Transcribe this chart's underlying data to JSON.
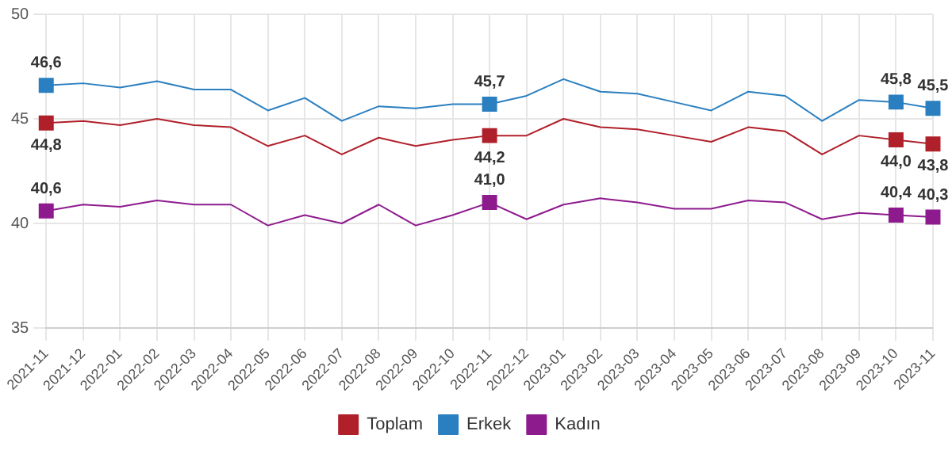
{
  "chart_data": {
    "type": "line",
    "categories": [
      "2021-11",
      "2021-12",
      "2022-01",
      "2022-02",
      "2022-03",
      "2022-04",
      "2022-05",
      "2022-06",
      "2022-07",
      "2022-08",
      "2022-09",
      "2022-10",
      "2022-11",
      "2022-12",
      "2023-01",
      "2023-02",
      "2023-03",
      "2023-04",
      "2023-05",
      "2023-06",
      "2023-07",
      "2023-08",
      "2023-09",
      "2023-10",
      "2023-11"
    ],
    "series": [
      {
        "name": "Toplam",
        "color": "#b0202a",
        "values": [
          44.8,
          44.9,
          44.7,
          45.0,
          44.7,
          44.6,
          43.7,
          44.2,
          43.3,
          44.1,
          43.7,
          44.0,
          44.2,
          44.2,
          45.0,
          44.6,
          44.5,
          44.2,
          43.9,
          44.6,
          44.4,
          43.3,
          44.2,
          44.0,
          43.8
        ],
        "value_labels": [
          "44,8",
          null,
          null,
          null,
          null,
          null,
          null,
          null,
          null,
          null,
          null,
          null,
          "44,2",
          null,
          null,
          null,
          null,
          null,
          null,
          null,
          null,
          null,
          null,
          "44,0",
          "43,8"
        ]
      },
      {
        "name": "Erkek",
        "color": "#2a7fc0",
        "values": [
          46.6,
          46.7,
          46.5,
          46.8,
          46.4,
          46.4,
          45.4,
          46.0,
          44.9,
          45.6,
          45.5,
          45.7,
          45.7,
          46.1,
          46.9,
          46.3,
          46.2,
          45.8,
          45.4,
          46.3,
          46.1,
          44.9,
          45.9,
          45.8,
          45.5
        ],
        "value_labels": [
          "46,6",
          null,
          null,
          null,
          null,
          null,
          null,
          null,
          null,
          null,
          null,
          null,
          "45,7",
          null,
          null,
          null,
          null,
          null,
          null,
          null,
          null,
          null,
          null,
          "45,8",
          "45,5"
        ]
      },
      {
        "name": "Kadın",
        "color": "#8e1b8e",
        "values": [
          40.6,
          40.9,
          40.8,
          41.1,
          40.9,
          40.9,
          39.9,
          40.4,
          40.0,
          40.9,
          39.9,
          40.4,
          41.0,
          40.2,
          40.9,
          41.2,
          41.0,
          40.7,
          40.7,
          41.1,
          41.0,
          40.2,
          40.5,
          40.4,
          40.3
        ],
        "value_labels": [
          "40,6",
          null,
          null,
          null,
          null,
          null,
          null,
          null,
          null,
          null,
          null,
          null,
          "41,0",
          null,
          null,
          null,
          null,
          null,
          null,
          null,
          null,
          null,
          null,
          "40,4",
          "40,3"
        ]
      }
    ],
    "ylim": [
      35,
      50
    ],
    "yticks": [
      35,
      40,
      45,
      50
    ],
    "grid": true,
    "legend": "bottom"
  }
}
